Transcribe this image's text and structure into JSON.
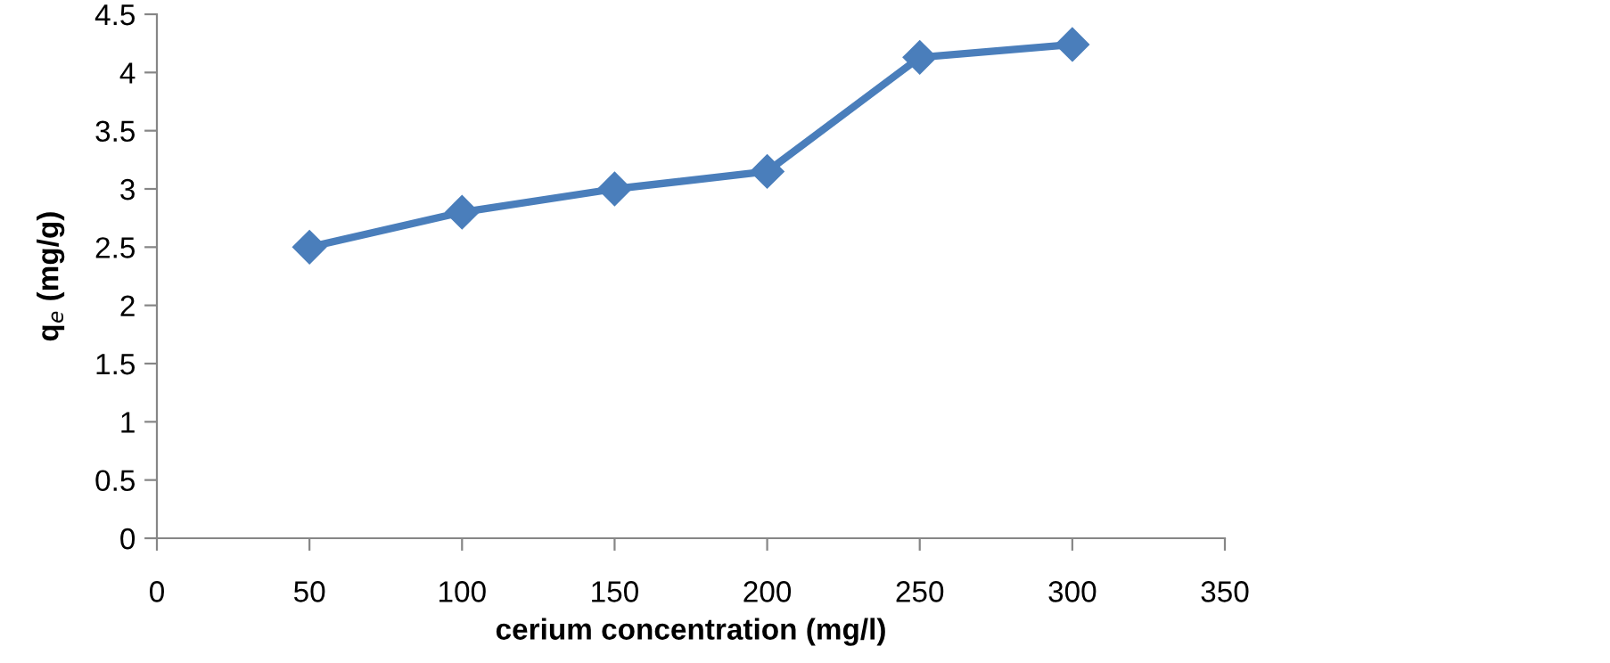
{
  "chart_data": {
    "type": "line",
    "xlabel": "cerium concentration (mg/l)",
    "ylabel": "q$_{e}$ (mg/g)",
    "x": [
      50,
      100,
      150,
      200,
      250,
      300
    ],
    "series": [
      {
        "color": "#4a7ebb",
        "values": [
          2.5,
          2.8,
          3.0,
          3.15,
          4.13,
          4.24
        ]
      }
    ],
    "xlim": [
      0,
      350
    ],
    "xticks": [
      0,
      50,
      100,
      150,
      200,
      250,
      300,
      350
    ],
    "ylim": [
      0,
      4.5
    ],
    "yticks": [
      0,
      0.5,
      1,
      1.5,
      2,
      2.5,
      3,
      3.5,
      4,
      4.5
    ],
    "grid": false,
    "legend": false,
    "marker": "diamond",
    "line_style": "solid"
  }
}
